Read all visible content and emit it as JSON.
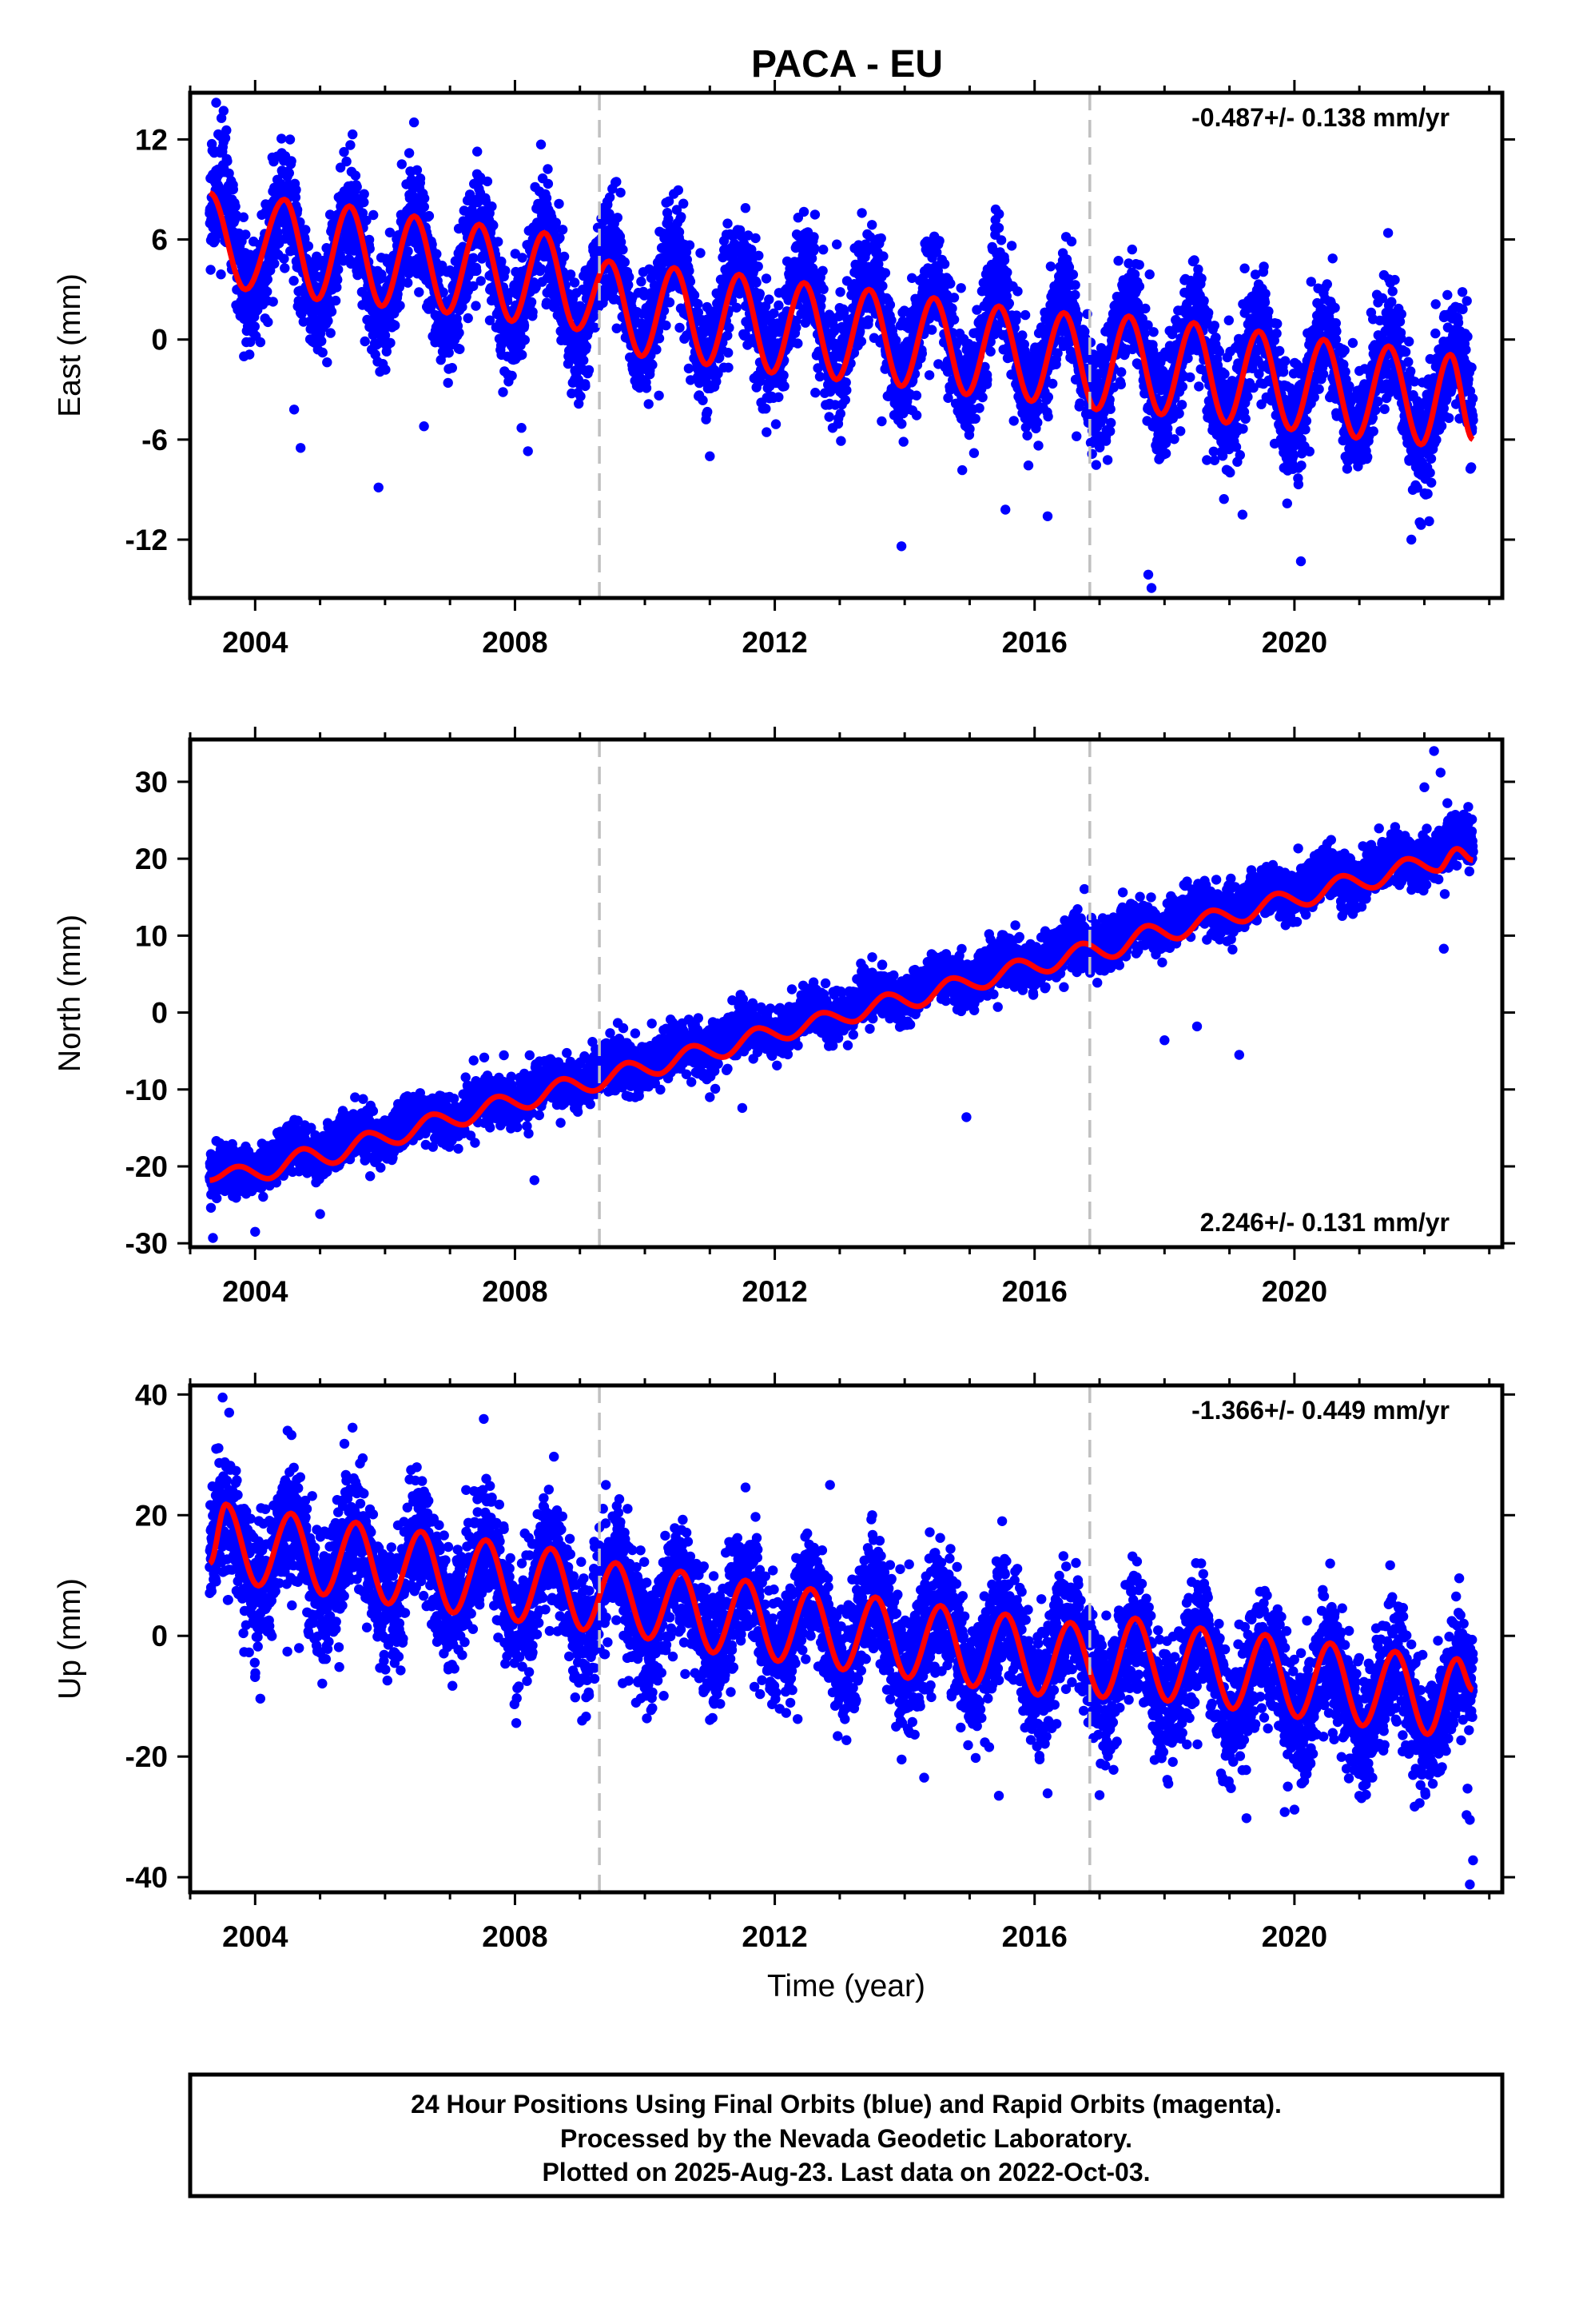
{
  "page": {
    "title": "PACA - EU",
    "footer": [
      "24 Hour Positions Using Final Orbits (blue) and Rapid Orbits (magenta).",
      "Processed by the Nevada Geodetic Laboratory.",
      "Plotted on 2025-Aug-23. Last data on 2022-Oct-03."
    ]
  },
  "colors": {
    "points": "#0000ff",
    "model": "#ff0000",
    "dashed_lines": "#c0c0c0",
    "axes": "#000000"
  },
  "chart_data": [
    {
      "type": "scatter",
      "panel": "east",
      "ylabel": "East (mm)",
      "rate_text": "-0.487+/- 0.138 mm/yr",
      "rate_position": "top-right",
      "xlim": [
        2003.0,
        2023.2
      ],
      "ylim": [
        -15.5,
        14.8
      ],
      "xticks": [
        "2004",
        "2008",
        "2012",
        "2016",
        "2020"
      ],
      "yticks": [
        "12",
        "6",
        "0",
        "-6",
        "-12"
      ],
      "data_range": [
        2003.3,
        2022.75
      ],
      "vertical_dashed_lines": [
        2009.3,
        2016.85
      ],
      "trend": {
        "rate_mm_per_yr": -0.487,
        "value_at_start": 5.8,
        "offset_at_2009_3": 0.0,
        "offset_at_2016_85": 0.0
      },
      "annual_amplitude_mm": 3.0,
      "annual_peak_fraction": 0.45,
      "scatter_sd_mm": 1.6,
      "model_line": [
        {
          "x": 2003.3,
          "y": 8.8
        },
        {
          "x": 2003.85,
          "y": 3.0
        },
        {
          "x": 2004.45,
          "y": 8.4
        },
        {
          "x": 2004.95,
          "y": 2.4
        },
        {
          "x": 2005.45,
          "y": 8.0
        },
        {
          "x": 2005.95,
          "y": 2.0
        },
        {
          "x": 2006.45,
          "y": 7.4
        },
        {
          "x": 2006.95,
          "y": 1.6
        },
        {
          "x": 2007.45,
          "y": 6.9
        },
        {
          "x": 2007.95,
          "y": 1.1
        },
        {
          "x": 2008.45,
          "y": 6.4
        },
        {
          "x": 2008.95,
          "y": 0.6
        },
        {
          "x": 2009.45,
          "y": 4.7
        },
        {
          "x": 2009.95,
          "y": -1.0
        },
        {
          "x": 2010.45,
          "y": 4.3
        },
        {
          "x": 2010.95,
          "y": -1.5
        },
        {
          "x": 2011.45,
          "y": 3.9
        },
        {
          "x": 2011.95,
          "y": -2.0
        },
        {
          "x": 2012.45,
          "y": 3.4
        },
        {
          "x": 2012.95,
          "y": -2.4
        },
        {
          "x": 2013.45,
          "y": 3.0
        },
        {
          "x": 2013.95,
          "y": -2.8
        },
        {
          "x": 2014.45,
          "y": 2.5
        },
        {
          "x": 2014.95,
          "y": -3.3
        },
        {
          "x": 2015.45,
          "y": 2.0
        },
        {
          "x": 2015.95,
          "y": -3.7
        },
        {
          "x": 2016.45,
          "y": 1.6
        },
        {
          "x": 2016.95,
          "y": -4.2
        },
        {
          "x": 2017.45,
          "y": 1.4
        },
        {
          "x": 2017.95,
          "y": -4.5
        },
        {
          "x": 2018.45,
          "y": 1.0
        },
        {
          "x": 2018.95,
          "y": -5.0
        },
        {
          "x": 2019.45,
          "y": 0.5
        },
        {
          "x": 2019.95,
          "y": -5.4
        },
        {
          "x": 2020.45,
          "y": 0.0
        },
        {
          "x": 2020.95,
          "y": -5.9
        },
        {
          "x": 2021.45,
          "y": -0.4
        },
        {
          "x": 2021.95,
          "y": -6.3
        },
        {
          "x": 2022.4,
          "y": -0.9
        },
        {
          "x": 2022.75,
          "y": -6.0
        }
      ],
      "outliers": [
        [
          2004.6,
          -4.2
        ],
        [
          2004.7,
          -6.5
        ],
        [
          2006.6,
          -5.2
        ],
        [
          2008.2,
          -6.7
        ],
        [
          2008.1,
          -5.3
        ],
        [
          2013.95,
          -12.4
        ],
        [
          2015.55,
          -10.2
        ],
        [
          2016.2,
          -10.6
        ],
        [
          2017.8,
          -14.9
        ],
        [
          2017.75,
          -14.1
        ],
        [
          2020.1,
          -13.3
        ],
        [
          2021.8,
          -12.0
        ],
        [
          2011.0,
          -7.0
        ],
        [
          2019.2,
          -10.5
        ]
      ],
      "high_points": [
        [
          2003.4,
          14.2
        ],
        [
          2005.5,
          12.3
        ],
        [
          2008.4,
          11.7
        ],
        [
          2015.4,
          7.8
        ],
        [
          2019.4,
          3.9
        ]
      ]
    },
    {
      "type": "scatter",
      "panel": "north",
      "ylabel": "North (mm)",
      "rate_text": "2.246+/- 0.131 mm/yr",
      "rate_position": "bottom-right",
      "xlim": [
        2003.0,
        2023.2
      ],
      "ylim": [
        -30.5,
        35.5
      ],
      "xticks": [
        "2004",
        "2008",
        "2012",
        "2016",
        "2020"
      ],
      "yticks": [
        "30",
        "20",
        "10",
        "0",
        "-10",
        "-20",
        "-30"
      ],
      "data_range": [
        2003.3,
        2022.75
      ],
      "vertical_dashed_lines": [
        2009.3,
        2016.85
      ],
      "trend": {
        "rate_mm_per_yr": 2.246,
        "value_at_start": -21.5,
        "offset_at_2009_3": 0.0,
        "offset_at_2016_85": 0.0
      },
      "annual_amplitude_mm": 1.1,
      "annual_peak_fraction": 0.5,
      "scatter_sd_mm": 1.5,
      "model_line": [
        {
          "x": 2003.3,
          "y": -21.8
        },
        {
          "x": 2003.75,
          "y": -20.0
        },
        {
          "x": 2004.2,
          "y": -21.6
        },
        {
          "x": 2004.75,
          "y": -17.7
        },
        {
          "x": 2005.2,
          "y": -19.6
        },
        {
          "x": 2005.75,
          "y": -15.6
        },
        {
          "x": 2006.2,
          "y": -17.0
        },
        {
          "x": 2006.75,
          "y": -13.2
        },
        {
          "x": 2007.2,
          "y": -14.6
        },
        {
          "x": 2007.75,
          "y": -10.9
        },
        {
          "x": 2008.2,
          "y": -12.4
        },
        {
          "x": 2008.75,
          "y": -8.6
        },
        {
          "x": 2009.2,
          "y": -10.2
        },
        {
          "x": 2009.75,
          "y": -6.5
        },
        {
          "x": 2010.2,
          "y": -8.0
        },
        {
          "x": 2010.75,
          "y": -4.3
        },
        {
          "x": 2011.2,
          "y": -5.8
        },
        {
          "x": 2011.75,
          "y": -2.0
        },
        {
          "x": 2012.2,
          "y": -3.4
        },
        {
          "x": 2012.75,
          "y": 0.0
        },
        {
          "x": 2013.2,
          "y": -1.2
        },
        {
          "x": 2013.75,
          "y": 2.4
        },
        {
          "x": 2014.2,
          "y": 0.8
        },
        {
          "x": 2014.75,
          "y": 4.5
        },
        {
          "x": 2015.2,
          "y": 3.2
        },
        {
          "x": 2015.75,
          "y": 6.8
        },
        {
          "x": 2016.2,
          "y": 5.3
        },
        {
          "x": 2016.75,
          "y": 9.0
        },
        {
          "x": 2017.2,
          "y": 7.2
        },
        {
          "x": 2017.75,
          "y": 11.3
        },
        {
          "x": 2018.2,
          "y": 9.6
        },
        {
          "x": 2018.75,
          "y": 13.3
        },
        {
          "x": 2019.2,
          "y": 11.8
        },
        {
          "x": 2019.75,
          "y": 15.5
        },
        {
          "x": 2020.2,
          "y": 14.0
        },
        {
          "x": 2020.75,
          "y": 17.8
        },
        {
          "x": 2021.2,
          "y": 16.2
        },
        {
          "x": 2021.75,
          "y": 20.0
        },
        {
          "x": 2022.2,
          "y": 18.4
        },
        {
          "x": 2022.5,
          "y": 21.3
        },
        {
          "x": 2022.75,
          "y": 19.8
        }
      ],
      "outliers": [
        [
          2003.35,
          -29.3
        ],
        [
          2004.0,
          -28.5
        ],
        [
          2005.0,
          -26.2
        ],
        [
          2008.3,
          -21.8
        ],
        [
          2011.0,
          -11.0
        ],
        [
          2011.5,
          -12.4
        ],
        [
          2014.95,
          -13.6
        ],
        [
          2018.0,
          -3.6
        ],
        [
          2019.15,
          -5.5
        ],
        [
          2018.5,
          -1.8
        ],
        [
          2022.0,
          29.3
        ],
        [
          2022.15,
          34.0
        ],
        [
          2022.25,
          31.2
        ],
        [
          2022.3,
          8.3
        ]
      ],
      "high_points": [
        [
          2004.5,
          -14.8
        ],
        [
          2006.3,
          -11.2
        ],
        [
          2013.5,
          7.2
        ],
        [
          2015.3,
          10.2
        ],
        [
          2018.3,
          16.6
        ]
      ]
    },
    {
      "type": "scatter",
      "panel": "up",
      "ylabel": "Up (mm)",
      "rate_text": "-1.366+/- 0.449 mm/yr",
      "rate_position": "top-right",
      "xlabel": "Time (year)",
      "xlim": [
        2003.0,
        2023.2
      ],
      "ylim": [
        -42.5,
        41.5
      ],
      "xticks": [
        "2004",
        "2008",
        "2012",
        "2016",
        "2020"
      ],
      "yticks": [
        "40",
        "20",
        "0",
        "-20",
        "-40"
      ],
      "data_range": [
        2003.3,
        2022.75
      ],
      "vertical_dashed_lines": [
        2009.3,
        2016.85
      ],
      "trend": {
        "rate_mm_per_yr": -1.366,
        "value_at_start": 14.5,
        "offset_at_2009_3": 0.0,
        "offset_at_2016_85": 0.0
      },
      "annual_amplitude_mm": 6.3,
      "annual_peak_fraction": 0.55,
      "scatter_sd_mm": 5.0,
      "model_line": [
        {
          "x": 2003.3,
          "y": 12.0
        },
        {
          "x": 2003.55,
          "y": 21.8
        },
        {
          "x": 2004.05,
          "y": 8.3
        },
        {
          "x": 2004.55,
          "y": 20.3
        },
        {
          "x": 2005.05,
          "y": 6.8
        },
        {
          "x": 2005.55,
          "y": 18.8
        },
        {
          "x": 2006.05,
          "y": 5.3
        },
        {
          "x": 2006.55,
          "y": 17.3
        },
        {
          "x": 2007.05,
          "y": 3.8
        },
        {
          "x": 2007.55,
          "y": 15.9
        },
        {
          "x": 2008.05,
          "y": 2.4
        },
        {
          "x": 2008.55,
          "y": 14.5
        },
        {
          "x": 2009.05,
          "y": 1.0
        },
        {
          "x": 2009.55,
          "y": 12.1
        },
        {
          "x": 2010.05,
          "y": -0.5
        },
        {
          "x": 2010.55,
          "y": 10.7
        },
        {
          "x": 2011.05,
          "y": -2.8
        },
        {
          "x": 2011.55,
          "y": 9.2
        },
        {
          "x": 2012.05,
          "y": -4.2
        },
        {
          "x": 2012.55,
          "y": 7.8
        },
        {
          "x": 2013.05,
          "y": -5.6
        },
        {
          "x": 2013.55,
          "y": 6.4
        },
        {
          "x": 2014.05,
          "y": -7.0
        },
        {
          "x": 2014.55,
          "y": 5.0
        },
        {
          "x": 2015.05,
          "y": -8.4
        },
        {
          "x": 2015.55,
          "y": 3.6
        },
        {
          "x": 2016.05,
          "y": -9.8
        },
        {
          "x": 2016.55,
          "y": 2.2
        },
        {
          "x": 2017.05,
          "y": -10.2
        },
        {
          "x": 2017.55,
          "y": 2.9
        },
        {
          "x": 2018.05,
          "y": -10.8
        },
        {
          "x": 2018.55,
          "y": 1.3
        },
        {
          "x": 2019.05,
          "y": -12.1
        },
        {
          "x": 2019.55,
          "y": 0.2
        },
        {
          "x": 2020.05,
          "y": -13.5
        },
        {
          "x": 2020.55,
          "y": -1.2
        },
        {
          "x": 2021.05,
          "y": -14.9
        },
        {
          "x": 2021.55,
          "y": -2.6
        },
        {
          "x": 2022.05,
          "y": -16.3
        },
        {
          "x": 2022.5,
          "y": -3.8
        },
        {
          "x": 2022.75,
          "y": -9.0
        }
      ],
      "outliers": [
        [
          2003.5,
          39.5
        ],
        [
          2003.6,
          37.0
        ],
        [
          2004.5,
          34.0
        ],
        [
          2005.5,
          34.5
        ],
        [
          2012.85,
          25.0
        ],
        [
          2019.85,
          -29.2
        ],
        [
          2020.0,
          -28.8
        ],
        [
          2021.85,
          -28.3
        ],
        [
          2022.7,
          -30.5
        ],
        [
          2022.75,
          -37.2
        ],
        [
          2022.7,
          -41.2
        ],
        [
          2022.65,
          -29.7
        ],
        [
          2015.45,
          -26.5
        ],
        [
          2016.2,
          -26.1
        ],
        [
          2017.0,
          -26.4
        ],
        [
          2014.3,
          -23.5
        ],
        [
          2018.9,
          -24.1
        ]
      ],
      "high_points": [
        [
          2003.4,
          31.0
        ],
        [
          2006.4,
          27.5
        ],
        [
          2008.6,
          29.7
        ],
        [
          2009.4,
          25.0
        ],
        [
          2011.55,
          24.6
        ],
        [
          2013.5,
          20.0
        ],
        [
          2015.5,
          19.0
        ],
        [
          2020.55,
          12.0
        ]
      ]
    }
  ]
}
